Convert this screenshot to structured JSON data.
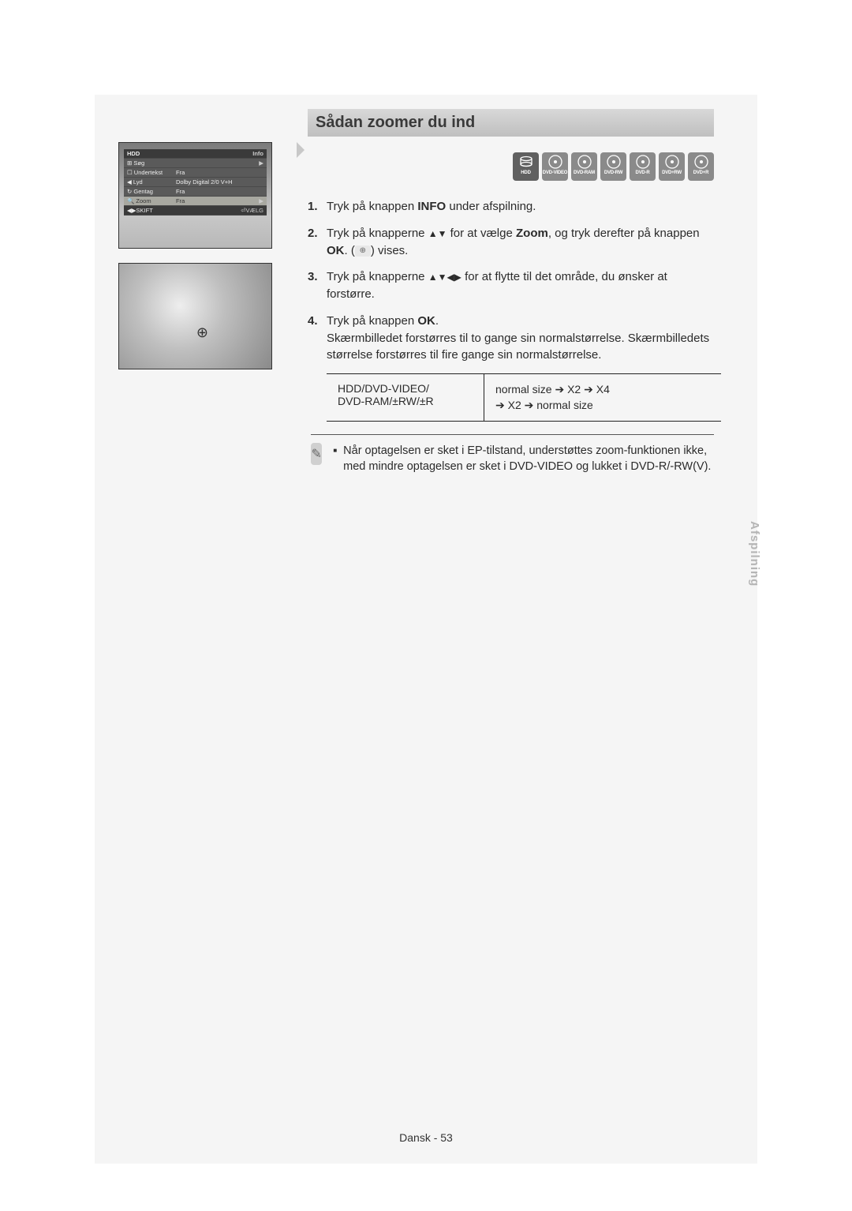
{
  "heading": "Sådan zoomer du ind",
  "osd": {
    "title_left": "HDD",
    "title_right": "Info",
    "rows": [
      {
        "icon": "⊞",
        "label": "Søg",
        "val": "",
        "chev": "▶"
      },
      {
        "icon": "☐",
        "label": "Undertekst",
        "val": "Fra",
        "chev": ""
      },
      {
        "icon": "◀",
        "label": "Lyd",
        "val": "Dolby Digital 2/0 V+H",
        "chev": ""
      },
      {
        "icon": "↻",
        "label": "Gentag",
        "val": "Fra",
        "chev": ""
      },
      {
        "icon": "🔍",
        "label": "Zoom",
        "val": "Fra",
        "chev": "▶",
        "hl": true
      }
    ],
    "foot_left": "◀▶SKIFT",
    "foot_right": "⏎VÆLG"
  },
  "discs": [
    {
      "id": "hdd",
      "label": "HDD",
      "dark": true,
      "shape": "hdd"
    },
    {
      "id": "dvd-video",
      "label": "DVD-VIDEO",
      "dark": false,
      "shape": "disc"
    },
    {
      "id": "dvd-ram",
      "label": "DVD-RAM",
      "dark": false,
      "shape": "disc"
    },
    {
      "id": "dvd-rw",
      "label": "DVD-RW",
      "dark": false,
      "shape": "disc"
    },
    {
      "id": "dvd-r",
      "label": "DVD-R",
      "dark": false,
      "shape": "disc"
    },
    {
      "id": "dvd+rw",
      "label": "DVD+RW",
      "dark": false,
      "shape": "disc"
    },
    {
      "id": "dvd+r",
      "label": "DVD+R",
      "dark": false,
      "shape": "disc"
    }
  ],
  "steps": {
    "s1_pre": "Tryk på knappen ",
    "s1_b": "INFO",
    "s1_post": " under afspilning.",
    "s2_pre": "Tryk på knapperne ",
    "s2_arrows": "▲▼",
    "s2_mid": " for at vælge ",
    "s2_b": "Zoom",
    "s2_mid2": ", og tryk derefter på knappen ",
    "s2_b2": "OK",
    "s2_post": ". (",
    "s2_post2": ") vises.",
    "s3_pre": "Tryk på knapperne ",
    "s3_arrows": "▲▼◀▶",
    "s3_post": " for at flytte til det område, du ønsker at forstørre.",
    "s4_pre": "Tryk på knappen ",
    "s4_b": "OK",
    "s4_post": ".",
    "s4_l2": "Skærmbilledet forstørres til to gange sin normalstørrelse. Skærmbilledets størrelse forstørres til fire gange sin normalstørrelse."
  },
  "table": {
    "left_l1": "HDD/DVD-VIDEO/",
    "left_l2": "DVD-RAM/±RW/±R",
    "right_l1_a": "normal size ",
    "right_l1_b": " X2 ",
    "right_l1_c": " X4",
    "right_l2_a": " X2 ",
    "right_l2_b": " normal size",
    "arrow": "➔"
  },
  "note": "Når optagelsen er sket i EP-tilstand, understøttes zoom-funktionen ikke, med mindre optagelsen er sket i DVD-VIDEO og lukket i DVD-R/-RW(V).",
  "side_tab": "Afspilning",
  "footer": "Dansk - 53"
}
